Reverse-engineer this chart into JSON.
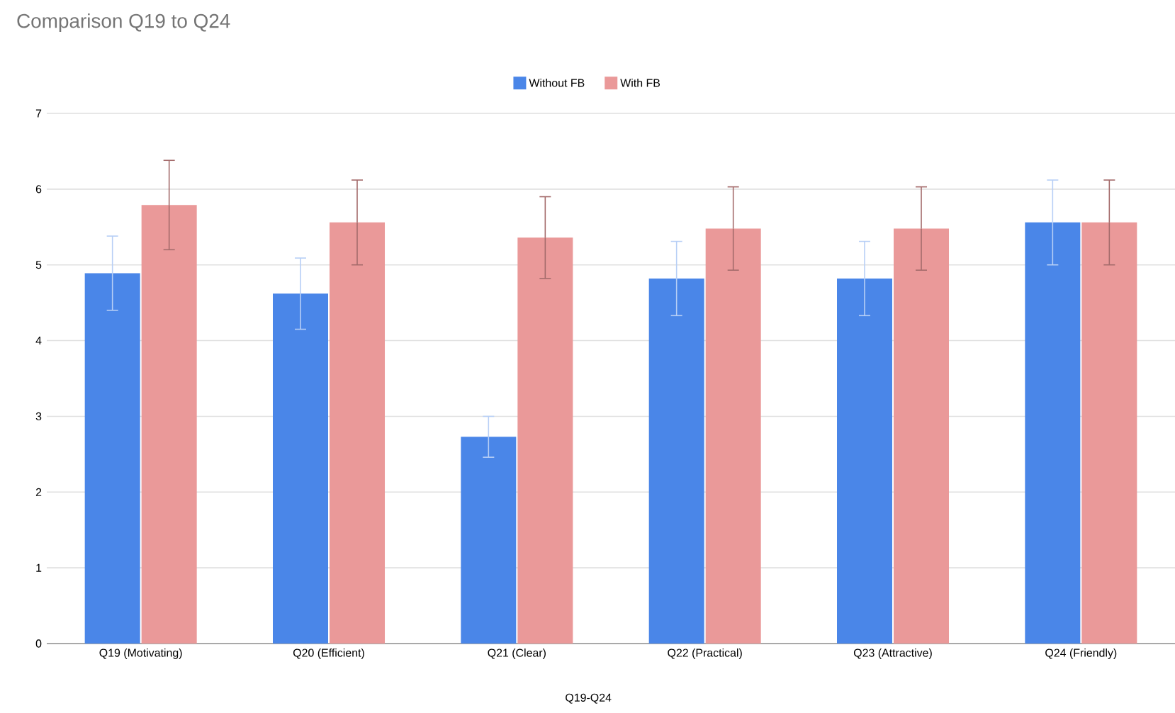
{
  "chart_data": {
    "type": "bar",
    "title": "Comparison Q19 to Q24",
    "xlabel": "Q19-Q24",
    "categories": [
      "Q19 (Motivating)",
      "Q20 (Efficient)",
      "Q21 (Clear)",
      "Q22 (Practical)",
      "Q23 (Attractive)",
      "Q24 (Friendly)"
    ],
    "series": [
      {
        "name": "Without FB",
        "color": "#4a86e8",
        "values": [
          4.89,
          4.62,
          2.73,
          4.82,
          4.82,
          5.56
        ],
        "errors": [
          0.49,
          0.47,
          0.27,
          0.49,
          0.49,
          0.56
        ]
      },
      {
        "name": "With FB",
        "color": "#ea9999",
        "values": [
          5.79,
          5.56,
          5.36,
          5.48,
          5.48,
          5.56
        ],
        "errors": [
          0.59,
          0.56,
          0.54,
          0.55,
          0.55,
          0.56
        ]
      }
    ],
    "ylim": [
      0,
      7
    ],
    "yticks": [
      0,
      1,
      2,
      3,
      4,
      5,
      6,
      7
    ],
    "grid": "y",
    "legend": "top"
  }
}
